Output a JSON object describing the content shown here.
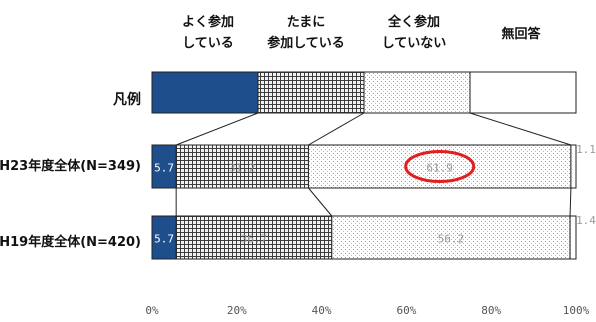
{
  "chart_data": {
    "type": "stacked-bar-100",
    "categories_header": [
      {
        "lines": [
          "よく参加",
          "している"
        ]
      },
      {
        "lines": [
          "たまに",
          "参加している"
        ]
      },
      {
        "lines": [
          "全く参加",
          "していない"
        ]
      },
      {
        "lines": [
          "無回答"
        ]
      }
    ],
    "legend_label": "凡例",
    "rows": [
      {
        "label": "H23年度全体(N=349)",
        "values": [
          5.7,
          31.2,
          61.9,
          1.1
        ],
        "value_labels": [
          "5.7",
          "31.2",
          "61.9",
          "1.1"
        ]
      },
      {
        "label": "H19年度全体(N=420)",
        "values": [
          5.7,
          36.7,
          56.2,
          1.4
        ],
        "value_labels": [
          "5.7",
          "36.7",
          "56.2",
          "1.4"
        ]
      }
    ],
    "x_ticks": [
      "0%",
      "20%",
      "40%",
      "60%",
      "80%",
      "100%"
    ],
    "xlim": [
      0,
      100
    ],
    "segment_styles": [
      "solid-dark-blue",
      "cross-hatch-grey",
      "dotted-light",
      "white"
    ],
    "colors": {
      "navy": "#1f4e8c",
      "hatch": "#4a4a4a",
      "dots": "#9a9a9a",
      "highlight": "#e02020"
    },
    "highlight": {
      "row": 0,
      "segment": 2,
      "shape": "red-ellipse"
    }
  }
}
